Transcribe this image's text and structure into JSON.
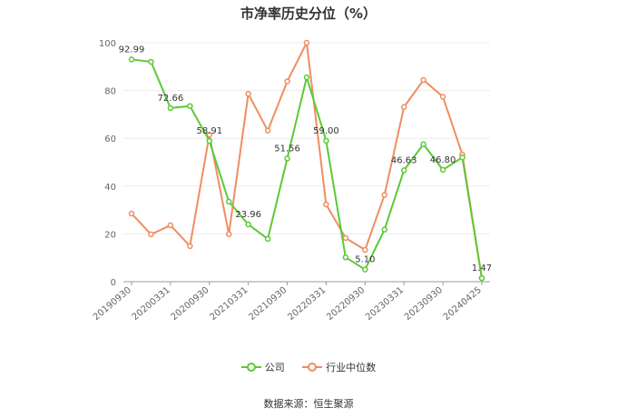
{
  "chart_data": {
    "type": "line",
    "title": "市净率历史分位（%）",
    "ylim": [
      0,
      100
    ],
    "yticks": [
      0,
      20,
      40,
      60,
      80,
      100
    ],
    "grid": true,
    "legend_position": "bottom",
    "x_tick_labels": [
      "20190930",
      "20200331",
      "20200930",
      "20210331",
      "20210930",
      "20220331",
      "20220930",
      "20230331",
      "20230930",
      "20240425"
    ],
    "x": [
      "20190930",
      "20191231",
      "20200331",
      "20200630",
      "20200930",
      "20201231",
      "20210331",
      "20210630",
      "20210930",
      "20211231",
      "20220331",
      "20220630",
      "20220930",
      "20221231",
      "20230331",
      "20230630",
      "20230930",
      "20231231",
      "20240425"
    ],
    "series": [
      {
        "name": "公司",
        "color": "#5cc936",
        "values": [
          92.99,
          92.0,
          72.66,
          73.5,
          58.91,
          33.5,
          23.96,
          17.9,
          51.56,
          85.5,
          59.0,
          10.2,
          5.1,
          21.8,
          46.63,
          57.5,
          46.8,
          52.0,
          1.47
        ]
      },
      {
        "name": "行业中位数",
        "color": "#f08d62",
        "values": [
          28.5,
          19.8,
          23.6,
          14.9,
          61.5,
          19.9,
          78.6,
          63.2,
          83.8,
          100.0,
          32.3,
          18.3,
          13.3,
          36.3,
          73.1,
          84.4,
          77.4,
          53.2,
          1.5
        ]
      }
    ],
    "data_labels": [
      {
        "index": 0,
        "text": "92.99"
      },
      {
        "index": 2,
        "text": "72.66"
      },
      {
        "index": 4,
        "text": "58.91"
      },
      {
        "index": 6,
        "text": "23.96"
      },
      {
        "index": 8,
        "text": "51.56"
      },
      {
        "index": 10,
        "text": "59.00"
      },
      {
        "index": 12,
        "text": "5.10"
      },
      {
        "index": 14,
        "text": "46.63"
      },
      {
        "index": 16,
        "text": "46.80"
      },
      {
        "index": 18,
        "text": "1.47"
      }
    ]
  },
  "source_text": "数据来源：恒生聚源"
}
